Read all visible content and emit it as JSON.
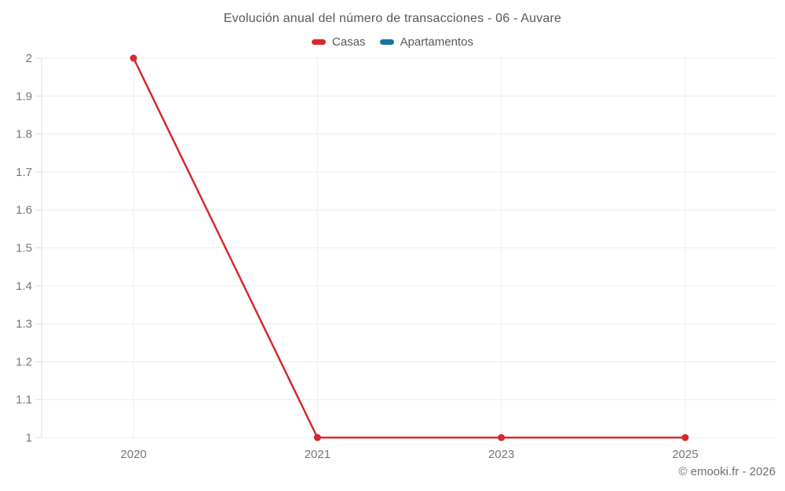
{
  "footer": {
    "text": "© emooki.fr - 2026"
  },
  "chart_data": {
    "type": "line",
    "title": "Evolución anual del número de transacciones - 06 - Auvare",
    "categories": [
      "2020",
      "2021",
      "2023",
      "2025"
    ],
    "series": [
      {
        "name": "Casas",
        "color": "#d7282e",
        "values": [
          2,
          1,
          1,
          1
        ]
      },
      {
        "name": "Apartamentos",
        "color": "#17739e",
        "values": []
      }
    ],
    "xlabel": "",
    "ylabel": "",
    "ylim": [
      1,
      2
    ],
    "ytick_step": 0.1,
    "ytick_labels": [
      "1",
      "1.1",
      "1.2",
      "1.3",
      "1.4",
      "1.5",
      "1.6",
      "1.7",
      "1.8",
      "1.9",
      "2"
    ],
    "grid": true,
    "legend_position": "top"
  }
}
